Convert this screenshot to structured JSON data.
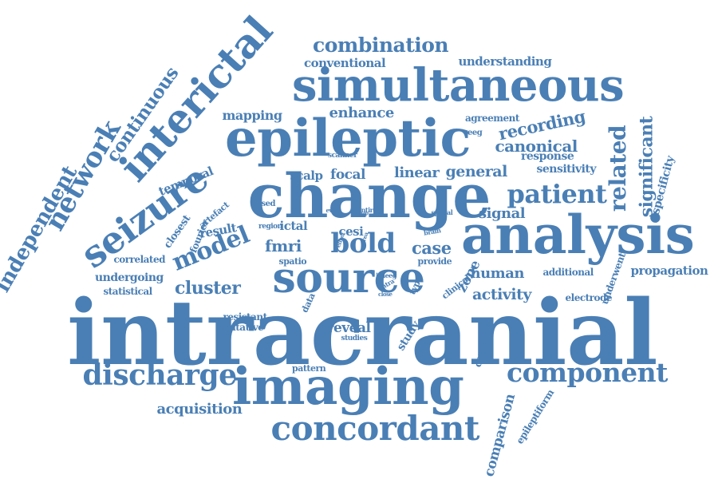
{
  "color": "#4a7fb5",
  "words": [
    {
      "text": "intracranial"
    },
    {
      "text": "simultaneous"
    },
    {
      "text": "epileptic"
    },
    {
      "text": "change"
    },
    {
      "text": "analysis"
    },
    {
      "text": "source"
    },
    {
      "text": "imaging"
    },
    {
      "text": "interictal"
    },
    {
      "text": "seizure"
    },
    {
      "text": "concordant"
    },
    {
      "text": "discharge"
    },
    {
      "text": "component"
    },
    {
      "text": "patient"
    },
    {
      "text": "bold"
    },
    {
      "text": "model"
    },
    {
      "text": "network"
    },
    {
      "text": "independent"
    },
    {
      "text": "continuous"
    },
    {
      "text": "combination"
    },
    {
      "text": "related"
    },
    {
      "text": "significant"
    },
    {
      "text": "recording"
    },
    {
      "text": "canonical"
    },
    {
      "text": "general"
    },
    {
      "text": "linear"
    },
    {
      "text": "enhance"
    },
    {
      "text": "mapping"
    },
    {
      "text": "scalp"
    },
    {
      "text": "focal"
    },
    {
      "text": "sensitivity"
    },
    {
      "text": "response"
    },
    {
      "text": "agreement"
    },
    {
      "text": "specificity"
    },
    {
      "text": "conventional"
    },
    {
      "text": "understanding"
    },
    {
      "text": "temporal"
    },
    {
      "text": "fmri"
    },
    {
      "text": "ictal"
    },
    {
      "text": "case"
    },
    {
      "text": "cluster"
    },
    {
      "text": "activity"
    },
    {
      "text": "human"
    },
    {
      "text": "propagation"
    },
    {
      "text": "additional"
    },
    {
      "text": "underwent"
    },
    {
      "text": "electrode"
    },
    {
      "text": "signal"
    },
    {
      "text": "zone"
    },
    {
      "text": "result"
    },
    {
      "text": "closest"
    },
    {
      "text": "fourier"
    },
    {
      "text": "artefact"
    },
    {
      "text": "based"
    },
    {
      "text": "correlated"
    },
    {
      "text": "undergoing"
    },
    {
      "text": "statistical"
    },
    {
      "text": "resistant"
    },
    {
      "text": "irritative"
    },
    {
      "text": "reveal"
    },
    {
      "text": "studies"
    },
    {
      "text": "pattern"
    },
    {
      "text": "acquisition"
    },
    {
      "text": "study"
    },
    {
      "text": "correlate"
    },
    {
      "text": "comparison"
    },
    {
      "text": "epileptiform"
    },
    {
      "text": "cesi"
    },
    {
      "text": "spatio"
    },
    {
      "text": "provide"
    },
    {
      "text": "data"
    },
    {
      "text": "region"
    },
    {
      "text": "scanner"
    },
    {
      "text": "event"
    },
    {
      "text": "entire"
    },
    {
      "text": "brain"
    },
    {
      "text": "spatial"
    },
    {
      "text": "map"
    },
    {
      "text": "type"
    },
    {
      "text": "clinical"
    },
    {
      "text": "eeg"
    },
    {
      "text": "effect"
    },
    {
      "text": "area"
    },
    {
      "text": "icaeeg"
    },
    {
      "text": "intra"
    },
    {
      "text": "close"
    }
  ]
}
